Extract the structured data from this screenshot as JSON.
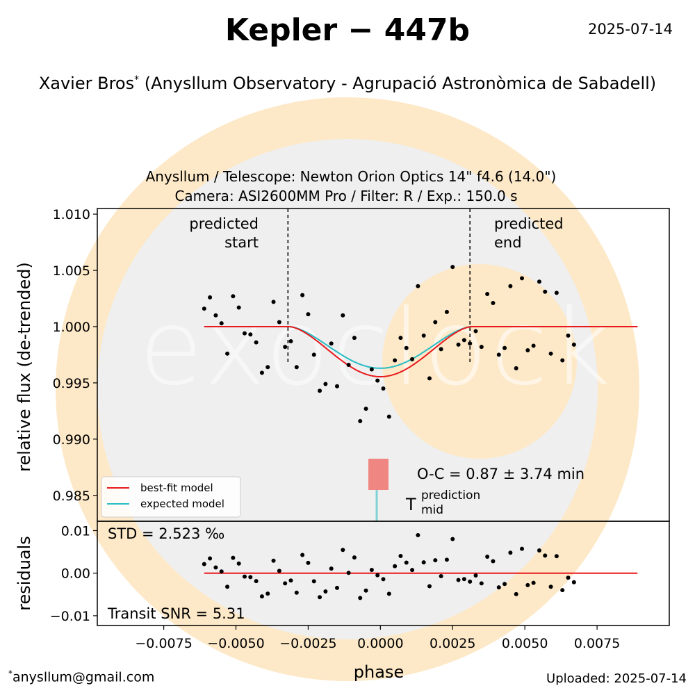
{
  "page": {
    "title": "Kepler − 447b",
    "date": "2025-07-14",
    "author": "Xavier Bros",
    "author_mark": "*",
    "affiliation": "(Anysllum Observatory - Agrupació Astronòmica de Sabadell)",
    "footer_mark": "*",
    "footer_email": "anysllum@gmail.com",
    "footer_uploaded": "Uploaded: 2025-07-14",
    "watermark_text": "exoclock"
  },
  "colors": {
    "best_fit": "#e8191c",
    "expected": "#26bcc4",
    "residual_line": "#e8191c",
    "points": "#000000",
    "oc_box": "#f08682",
    "mid_marker": "#7fd3d6",
    "watermark_gray": "#efefef",
    "watermark_orange": "#fde9c8"
  },
  "chart_data": [
    {
      "type": "scatter",
      "subtitle_line1": "Anysllum / Telescope: Newton Orion Optics 14\" f4.6 (14.0\")",
      "subtitle_line2": "Camera: ASI2600MM Pro / Filter: R / Exp.: 150.0 s",
      "ylabel": "relative flux (de-trended)",
      "xlim": [
        -0.0098,
        0.01
      ],
      "ylim": [
        0.9827,
        1.0105
      ],
      "yticks": [
        0.985,
        0.99,
        0.995,
        1.0,
        1.005,
        1.01
      ],
      "ytick_labels": [
        "0.985",
        "0.990",
        "0.995",
        "1.000",
        "1.005",
        "1.010"
      ],
      "legend": {
        "placement": "lower-left",
        "entries": [
          "best-fit model",
          "expected model"
        ]
      },
      "annotations": {
        "predicted_start_line1": "predicted",
        "predicted_start_line2": "start",
        "predicted_start_x": -0.0032,
        "predicted_end_line1": "predicted",
        "predicted_end_line2": "end",
        "predicted_end_x": 0.0031,
        "oc_text": "O-C = 0.87 ± 3.74 min",
        "oc_value_min": 0.87,
        "oc_error_min": 3.74,
        "tmid_main": "T",
        "tmid_sup": "prediction",
        "tmid_sub": "mid"
      },
      "model": {
        "depth_best": 0.00445,
        "depth_expected": 0.0037,
        "t1": -0.00315,
        "t4": 0.00315
      },
      "points": [
        [
          -0.0061,
          1.0016
        ],
        [
          -0.0059,
          1.0026
        ],
        [
          -0.0057,
          1.001
        ],
        [
          -0.0055,
          1.0003
        ],
        [
          -0.0053,
          0.9976
        ],
        [
          -0.0051,
          1.0027
        ],
        [
          -0.0049,
          1.0017
        ],
        [
          -0.0047,
          0.9994
        ],
        [
          -0.0045,
          0.9993
        ],
        [
          -0.0043,
          0.9986
        ],
        [
          -0.0041,
          0.9959
        ],
        [
          -0.0039,
          0.9964
        ],
        [
          -0.0037,
          1.0022
        ],
        [
          -0.0035,
          1.0004
        ],
        [
          -0.0033,
          0.9982
        ],
        [
          -0.0031,
          0.9987
        ],
        [
          -0.0029,
          0.9964
        ],
        [
          -0.0027,
          1.0028
        ],
        [
          -0.0025,
          1.0011
        ],
        [
          -0.0023,
          0.9975
        ],
        [
          -0.0021,
          0.9943
        ],
        [
          -0.0019,
          0.9949
        ],
        [
          -0.0017,
          0.9985
        ],
        [
          -0.0015,
          0.9947
        ],
        [
          -0.0013,
          1.001
        ],
        [
          -0.0011,
          0.9966
        ],
        [
          -0.0009,
          0.999
        ],
        [
          -0.0007,
          0.9916
        ],
        [
          -0.0005,
          0.9927
        ],
        [
          -0.0003,
          0.9962
        ],
        [
          -0.0001,
          0.9952
        ],
        [
          0.0001,
          0.9945
        ],
        [
          0.0003,
          0.992
        ],
        [
          0.0005,
          0.997
        ],
        [
          0.0007,
          0.999
        ],
        [
          0.0009,
          0.9981
        ],
        [
          0.0011,
          0.9971
        ],
        [
          0.0013,
          1.0036
        ],
        [
          0.0015,
          0.9992
        ],
        [
          0.0017,
          0.9954
        ],
        [
          0.0019,
          1.0004
        ],
        [
          0.0021,
          0.998
        ],
        [
          0.0023,
          1.0013
        ],
        [
          0.0025,
          1.0053
        ],
        [
          0.0027,
          0.9984
        ],
        [
          0.0029,
          0.9988
        ],
        [
          0.0031,
          0.9985
        ],
        [
          0.0033,
          0.9996
        ],
        [
          0.0035,
          0.9982
        ],
        [
          0.0037,
          1.0029
        ],
        [
          0.0039,
          1.0021
        ],
        [
          0.0041,
          0.9975
        ],
        [
          0.0043,
          0.9981
        ],
        [
          0.0045,
          1.0036
        ],
        [
          0.0047,
          0.9963
        ],
        [
          0.0049,
          1.0043
        ],
        [
          0.0051,
          0.9979
        ],
        [
          0.0053,
          0.9983
        ],
        [
          0.0055,
          1.004
        ],
        [
          0.0057,
          1.0031
        ],
        [
          0.0059,
          0.9976
        ],
        [
          0.0061,
          1.003
        ],
        [
          0.0063,
          0.997
        ],
        [
          0.0065,
          0.9992
        ],
        [
          0.0067,
          0.9984
        ]
      ]
    },
    {
      "type": "scatter",
      "ylabel": "residuals",
      "xlabel": "phase",
      "xlim": [
        -0.0098,
        0.01
      ],
      "ylim": [
        -0.0123,
        0.0122
      ],
      "yticks": [
        -0.01,
        0.0,
        0.01
      ],
      "ytick_labels": [
        "−0.01",
        "0.00",
        "0.01"
      ],
      "xticks": [
        -0.0075,
        -0.005,
        -0.0025,
        0.0,
        0.0025,
        0.005,
        0.0075
      ],
      "xtick_labels": [
        "−0.0075",
        "−0.0050",
        "−0.0025",
        "0.0000",
        "0.0025",
        "0.0050",
        "0.0075"
      ],
      "std_text": "STD = 2.523 ‰",
      "snr_text": "Transit SNR = 5.31",
      "zero_line": [
        -0.0061,
        0.0089
      ]
    }
  ]
}
